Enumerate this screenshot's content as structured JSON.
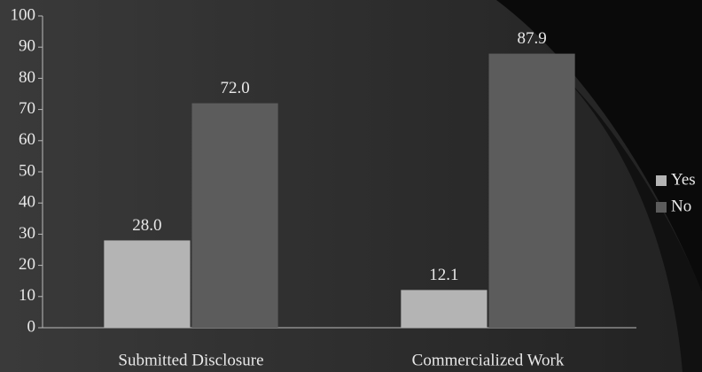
{
  "chart_data": {
    "type": "bar",
    "categories": [
      "Submitted Disclosure",
      "Commercialized Work"
    ],
    "series": [
      {
        "name": "Yes",
        "color": "#b4b4b4",
        "values": [
          28,
          12.1
        ],
        "value_labels": [
          "28.0",
          "12.1"
        ]
      },
      {
        "name": "No",
        "color": "#5c5c5c",
        "values": [
          72,
          87.9
        ],
        "value_labels": [
          "72.0",
          "87.9"
        ]
      }
    ],
    "ylim": [
      0,
      100
    ],
    "yticks": [
      0,
      10,
      20,
      30,
      40,
      50,
      60,
      70,
      80,
      90,
      100
    ],
    "legend": "right"
  }
}
